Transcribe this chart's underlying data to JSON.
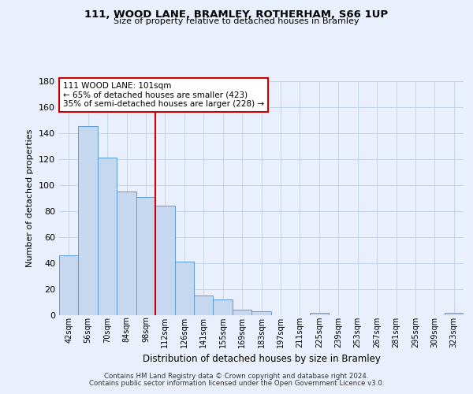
{
  "title": "111, WOOD LANE, BRAMLEY, ROTHERHAM, S66 1UP",
  "subtitle": "Size of property relative to detached houses in Bramley",
  "xlabel": "Distribution of detached houses by size in Bramley",
  "ylabel": "Number of detached properties",
  "bin_labels": [
    "42sqm",
    "56sqm",
    "70sqm",
    "84sqm",
    "98sqm",
    "112sqm",
    "126sqm",
    "141sqm",
    "155sqm",
    "169sqm",
    "183sqm",
    "197sqm",
    "211sqm",
    "225sqm",
    "239sqm",
    "253sqm",
    "267sqm",
    "281sqm",
    "295sqm",
    "309sqm",
    "323sqm"
  ],
  "bar_values": [
    46,
    145,
    121,
    95,
    91,
    84,
    41,
    15,
    12,
    4,
    3,
    0,
    0,
    2,
    0,
    0,
    0,
    0,
    0,
    0,
    2
  ],
  "bar_color": "#c5d8f0",
  "bar_edge_color": "#5b9bd5",
  "annotation_title": "111 WOOD LANE: 101sqm",
  "annotation_line1": "← 65% of detached houses are smaller (423)",
  "annotation_line2": "35% of semi-detached houses are larger (228) →",
  "annotation_box_color": "#ffffff",
  "annotation_box_edge_color": "#cc0000",
  "marker_line_color": "#cc0000",
  "ylim": [
    0,
    180
  ],
  "yticks": [
    0,
    20,
    40,
    60,
    80,
    100,
    120,
    140,
    160,
    180
  ],
  "footer_line1": "Contains HM Land Registry data © Crown copyright and database right 2024.",
  "footer_line2": "Contains public sector information licensed under the Open Government Licence v3.0.",
  "bg_color": "#eaf0fb",
  "plot_bg_color": "#eaf0fb"
}
